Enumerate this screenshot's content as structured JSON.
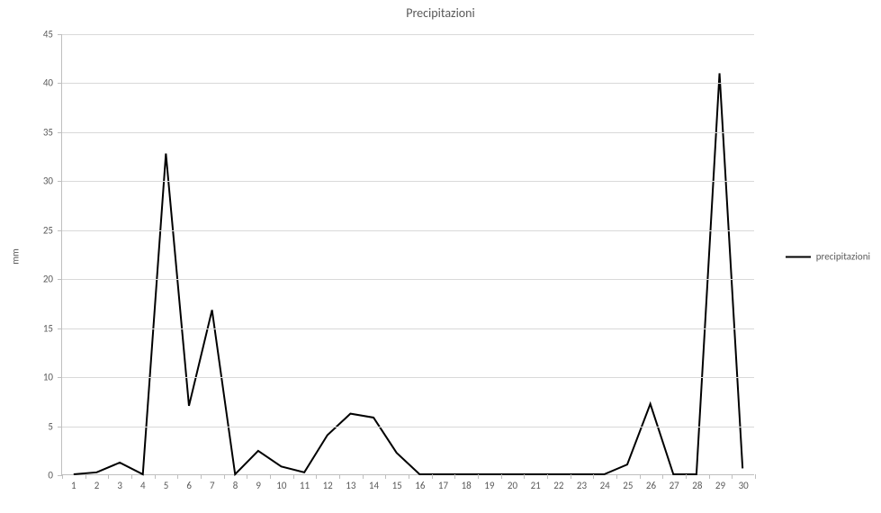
{
  "chart": {
    "type": "line",
    "title": "Precipitazioni",
    "title_fontsize": 14,
    "title_color": "#595959",
    "ylabel": "mm",
    "ylabel_fontsize": 11,
    "background_color": "#ffffff",
    "grid_color": "#d9d9d9",
    "axis_color": "#bfbfbf",
    "tick_label_color": "#595959",
    "tick_label_fontsize": 11,
    "ylim": [
      0,
      45
    ],
    "ytick_step": 5,
    "x_categories": [
      "1",
      "2",
      "3",
      "4",
      "5",
      "6",
      "7",
      "8",
      "9",
      "10",
      "11",
      "12",
      "13",
      "14",
      "15",
      "16",
      "17",
      "18",
      "19",
      "20",
      "21",
      "22",
      "23",
      "24",
      "25",
      "26",
      "27",
      "28",
      "29",
      "30"
    ],
    "series": [
      {
        "name": "precipitazioni",
        "color": "#000000",
        "line_width": 2,
        "values": [
          0.0,
          0.2,
          1.2,
          0.0,
          32.8,
          7.0,
          16.8,
          0.0,
          2.4,
          0.8,
          0.2,
          4.0,
          6.2,
          5.8,
          2.2,
          0.0,
          0.0,
          0.0,
          0.0,
          0.0,
          0.0,
          0.0,
          0.0,
          0.0,
          1.0,
          7.2,
          0.0,
          0.0,
          41.0,
          0.6
        ]
      }
    ],
    "legend": {
      "position": "right",
      "fontsize": 11
    }
  }
}
